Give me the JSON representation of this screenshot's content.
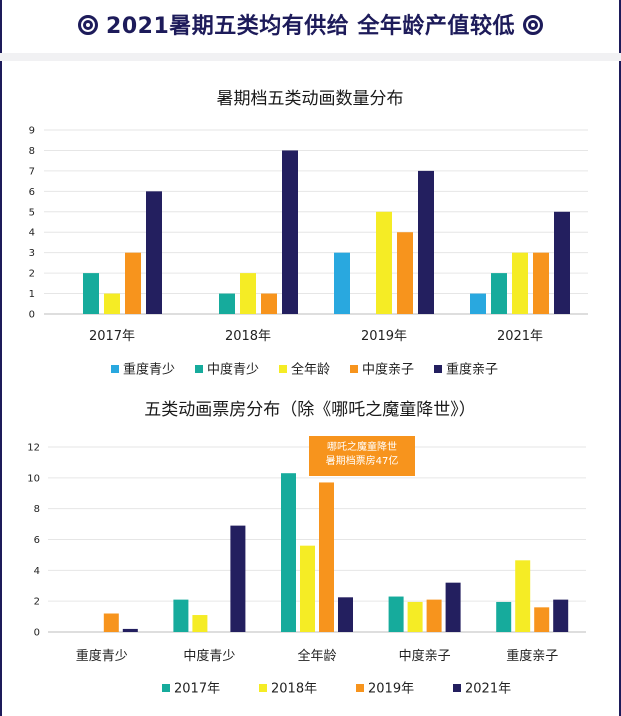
{
  "headline": "2021暑期五类均有供给 全年龄产值较低",
  "colors": {
    "重度青少": "#29a8df",
    "中度青少": "#16ab9c",
    "全年龄": "#f5ec25",
    "中度亲子": "#f7941d",
    "重度亲子": "#231f5f",
    "2017年": "#16ab9c",
    "2018年": "#f5ec25",
    "2019年": "#f7941d",
    "2021年": "#231f5f"
  },
  "chart_data": [
    {
      "type": "bar",
      "title": "暑期档五类动画数量分布",
      "categories": [
        "2017年",
        "2018年",
        "2019年",
        "2021年"
      ],
      "ylim": [
        0,
        9
      ],
      "yticks": [
        0,
        1,
        2,
        3,
        4,
        5,
        6,
        7,
        8,
        9
      ],
      "legend_position": "bottom",
      "grid": true,
      "series": [
        {
          "name": "重度青少",
          "values": [
            0,
            0,
            3,
            1
          ]
        },
        {
          "name": "中度青少",
          "values": [
            2,
            1,
            0,
            2
          ]
        },
        {
          "name": "全年龄",
          "values": [
            1,
            2,
            5,
            3
          ]
        },
        {
          "name": "中度亲子",
          "values": [
            3,
            1,
            4,
            3
          ]
        },
        {
          "name": "重度亲子",
          "values": [
            6,
            8,
            7,
            5
          ]
        }
      ]
    },
    {
      "type": "bar",
      "title": "五类动画票房分布（除《哪吒之魔童降世》）",
      "categories": [
        "重度青少",
        "中度青少",
        "全年龄",
        "中度亲子",
        "重度亲子"
      ],
      "ylim": [
        0,
        12
      ],
      "yticks": [
        0,
        2,
        4,
        6,
        8,
        10,
        12
      ],
      "legend_position": "bottom",
      "grid": true,
      "annotation": "哪吒之魔童降世\n暑期档票房47亿",
      "annotation_lines": [
        "哪吒之魔童降世",
        "暑期档票房47亿"
      ],
      "series": [
        {
          "name": "2017年",
          "values": [
            0,
            2.1,
            10.3,
            2.3,
            1.95
          ]
        },
        {
          "name": "2018年",
          "values": [
            0,
            1.1,
            5.6,
            1.95,
            4.65
          ]
        },
        {
          "name": "2019年",
          "values": [
            1.2,
            0,
            9.7,
            2.1,
            1.6
          ]
        },
        {
          "name": "2021年",
          "values": [
            0.2,
            6.9,
            2.25,
            3.2,
            2.1
          ]
        }
      ]
    }
  ]
}
